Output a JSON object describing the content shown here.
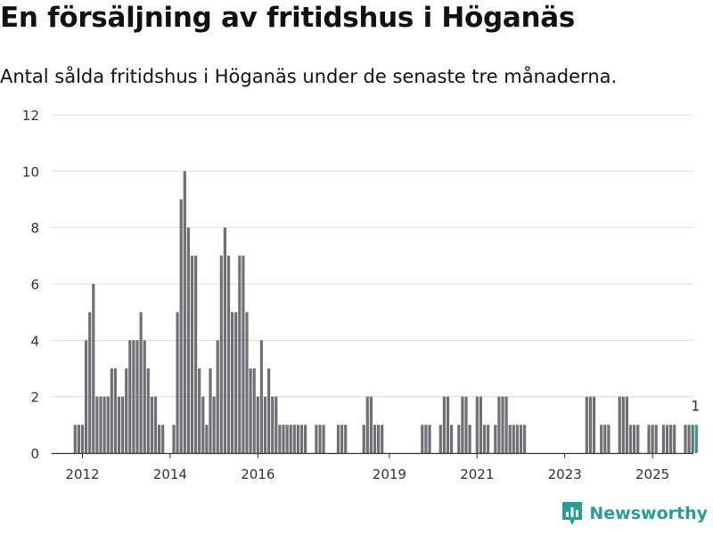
{
  "title": "En försäljning av fritidshus i Höganäs",
  "subtitle": "Antal sålda fritidshus i Höganäs under de senaste tre månaderna.",
  "logo_text": "Newsworthy",
  "colors": {
    "bar": "#707074",
    "highlight": "#2a9d98",
    "grid": "#dddddd"
  },
  "chart_data": {
    "type": "bar",
    "ylim": [
      0,
      12
    ],
    "yticks": [
      0,
      2,
      4,
      6,
      8,
      10,
      12
    ],
    "xticks": [
      "2012",
      "2014",
      "2016",
      "2019",
      "2021",
      "2023",
      "2025"
    ],
    "xtick_months": [
      0,
      24,
      48,
      84,
      108,
      132,
      156
    ],
    "x_unit": "month index (0 = Jan 2012)",
    "grid": true,
    "bars": [
      [
        -2,
        1
      ],
      [
        -1,
        1
      ],
      [
        0,
        1
      ],
      [
        1,
        4
      ],
      [
        2,
        5
      ],
      [
        3,
        6
      ],
      [
        4,
        2
      ],
      [
        5,
        2
      ],
      [
        6,
        2
      ],
      [
        7,
        2
      ],
      [
        8,
        3
      ],
      [
        9,
        3
      ],
      [
        10,
        2
      ],
      [
        11,
        2
      ],
      [
        12,
        3
      ],
      [
        13,
        4
      ],
      [
        14,
        4
      ],
      [
        15,
        4
      ],
      [
        16,
        5
      ],
      [
        17,
        4
      ],
      [
        18,
        3
      ],
      [
        19,
        2
      ],
      [
        20,
        2
      ],
      [
        21,
        1
      ],
      [
        22,
        1
      ],
      [
        25,
        1
      ],
      [
        26,
        5
      ],
      [
        27,
        9
      ],
      [
        28,
        10
      ],
      [
        29,
        8
      ],
      [
        30,
        7
      ],
      [
        31,
        7
      ],
      [
        32,
        3
      ],
      [
        33,
        2
      ],
      [
        34,
        1
      ],
      [
        35,
        3
      ],
      [
        36,
        2
      ],
      [
        37,
        4
      ],
      [
        38,
        7
      ],
      [
        39,
        8
      ],
      [
        40,
        7
      ],
      [
        41,
        5
      ],
      [
        42,
        5
      ],
      [
        43,
        7
      ],
      [
        44,
        7
      ],
      [
        45,
        5
      ],
      [
        46,
        3
      ],
      [
        47,
        3
      ],
      [
        48,
        2
      ],
      [
        49,
        4
      ],
      [
        50,
        2
      ],
      [
        51,
        3
      ],
      [
        52,
        2
      ],
      [
        53,
        2
      ],
      [
        54,
        1
      ],
      [
        55,
        1
      ],
      [
        56,
        1
      ],
      [
        57,
        1
      ],
      [
        58,
        1
      ],
      [
        59,
        1
      ],
      [
        60,
        1
      ],
      [
        61,
        1
      ],
      [
        64,
        1
      ],
      [
        65,
        1
      ],
      [
        66,
        1
      ],
      [
        70,
        1
      ],
      [
        71,
        1
      ],
      [
        72,
        1
      ],
      [
        77,
        1
      ],
      [
        78,
        2
      ],
      [
        79,
        2
      ],
      [
        80,
        1
      ],
      [
        81,
        1
      ],
      [
        82,
        1
      ],
      [
        93,
        1
      ],
      [
        94,
        1
      ],
      [
        95,
        1
      ],
      [
        98,
        1
      ],
      [
        99,
        2
      ],
      [
        100,
        2
      ],
      [
        101,
        1
      ],
      [
        103,
        1
      ],
      [
        104,
        2
      ],
      [
        105,
        2
      ],
      [
        106,
        1
      ],
      [
        108,
        2
      ],
      [
        109,
        2
      ],
      [
        110,
        1
      ],
      [
        111,
        1
      ],
      [
        113,
        1
      ],
      [
        114,
        2
      ],
      [
        115,
        2
      ],
      [
        116,
        2
      ],
      [
        117,
        1
      ],
      [
        118,
        1
      ],
      [
        119,
        1
      ],
      [
        120,
        1
      ],
      [
        121,
        1
      ],
      [
        138,
        2
      ],
      [
        139,
        2
      ],
      [
        140,
        2
      ],
      [
        142,
        1
      ],
      [
        143,
        1
      ],
      [
        144,
        1
      ],
      [
        147,
        2
      ],
      [
        148,
        2
      ],
      [
        149,
        2
      ],
      [
        150,
        1
      ],
      [
        151,
        1
      ],
      [
        152,
        1
      ],
      [
        155,
        1
      ],
      [
        156,
        1
      ],
      [
        157,
        1
      ],
      [
        159,
        1
      ],
      [
        160,
        1
      ],
      [
        161,
        1
      ],
      [
        162,
        1
      ],
      [
        165,
        1
      ],
      [
        166,
        1
      ],
      [
        167,
        1
      ]
    ],
    "highlight": {
      "x": 168,
      "value": 1,
      "label": "1"
    }
  }
}
